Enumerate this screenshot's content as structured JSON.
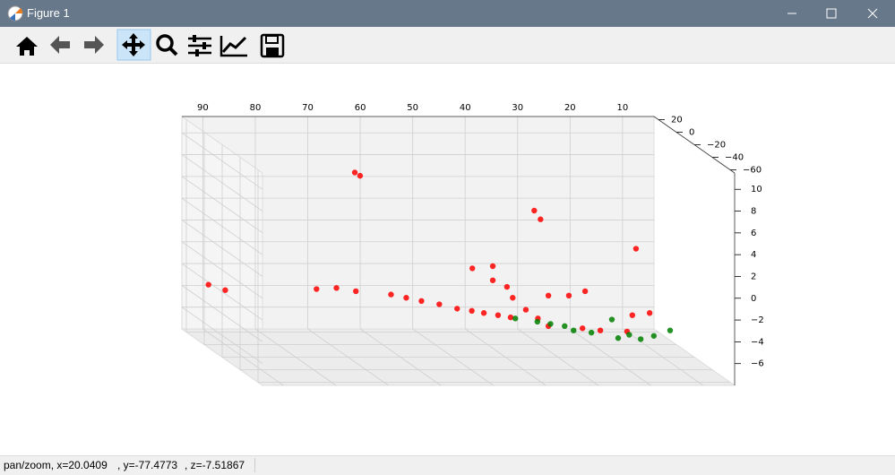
{
  "window": {
    "title": "Figure 1"
  },
  "chart_data": {
    "type": "scatter3d",
    "xlim": [
      4,
      94
    ],
    "ylim": [
      -65,
      25
    ],
    "zlim": [
      -8,
      11.5
    ],
    "xticks": [
      10,
      20,
      30,
      40,
      50,
      60,
      70,
      80,
      90
    ],
    "yticks": [
      20,
      0,
      {
        "value": -20,
        "label": "−20"
      },
      {
        "value": -40,
        "label": "−40"
      },
      {
        "value": -60,
        "label": "−60"
      }
    ],
    "zticks": [
      {
        "value": -6,
        "label": "−6"
      },
      {
        "value": -4,
        "label": "−4"
      },
      {
        "value": -2,
        "label": "−2"
      },
      0,
      2,
      4,
      6,
      8,
      10
    ],
    "grid": true,
    "series": [
      {
        "color": "#ff0000",
        "x": [
          65.3,
          64.3,
          93.2,
          90.0,
          72.6,
          68.8,
          65.1,
          58.4,
          52.6,
          45.8,
          40.7,
          35.6,
          31.1,
          29.9,
          42.9,
          39.0,
          39.0,
          36.3,
          35.2,
          32.7,
          28.4,
          24.5,
          21.4,
          11.7,
          28.4,
          21.9,
          18.5,
          13.4,
          12.4,
          9.1,
          30.4,
          55.5,
          49.2,
          43.0,
          38.0
        ],
        "y": [
          0,
          0,
          0,
          0,
          0,
          0,
          0,
          0,
          0,
          0,
          0,
          0,
          0,
          0,
          0,
          0,
          0,
          0,
          0,
          0,
          0,
          0,
          0,
          0,
          0,
          0,
          0,
          0,
          0,
          0,
          0,
          0,
          0,
          0,
          0
        ],
        "z": [
          7.8,
          7.5,
          -2.5,
          -3.0,
          -2.9,
          -2.8,
          -3.1,
          -3.4,
          -4.0,
          -4.7,
          -5.1,
          -5.5,
          4.3,
          3.5,
          -1.0,
          -0.8,
          -2.1,
          -2.7,
          -3.7,
          -4.8,
          -3.5,
          -3.5,
          -3.1,
          0.8,
          -6.3,
          -6.5,
          -6.7,
          -6.8,
          -5.3,
          -5.1,
          -5.6,
          -3.7,
          -4.3,
          -4.9,
          -5.3
        ]
      },
      {
        "color": "#008000",
        "x": [
          34.7,
          30.5,
          25.3,
          20.2,
          15.1,
          10.8,
          8.3,
          5.2,
          16.3,
          23.6,
          28.0,
          13.0
        ],
        "y": [
          0,
          0,
          0,
          0,
          0,
          0,
          0,
          0,
          0,
          0,
          0,
          0
        ],
        "z": [
          -5.6,
          -5.9,
          -6.3,
          -6.9,
          -7.4,
          -7.5,
          -7.2,
          -6.7,
          -5.7,
          -6.7,
          -6.1,
          -7.1
        ]
      }
    ]
  },
  "status": {
    "parts": [
      "pan/zoom, x=20.0409",
      ", y=-77.4773",
      ", z=-7.51867"
    ]
  }
}
